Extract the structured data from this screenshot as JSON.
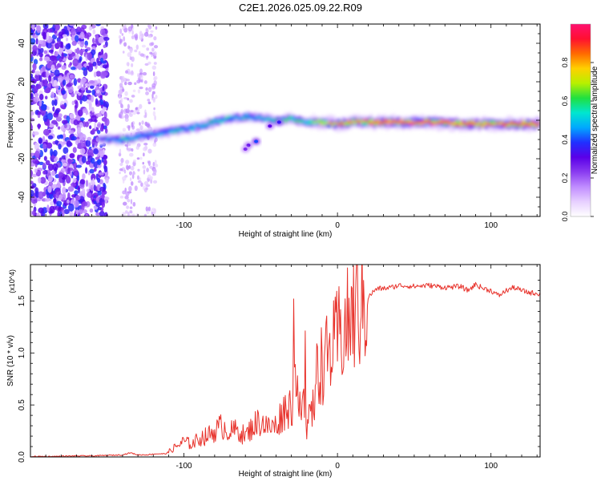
{
  "page_title": "C2E1.2026.025.09.22.R09",
  "chart_data": [
    {
      "type": "heatmap",
      "title": "C2E1.2026.025.09.22.R09",
      "xlabel": "Height of straight line (km)",
      "ylabel": "Frequency (Hz)",
      "xlim": [
        -200,
        132
      ],
      "ylim": [
        -50,
        50
      ],
      "x_ticks": [
        -100,
        0,
        100
      ],
      "x_tick_labels": [
        "-100",
        "0",
        "100"
      ],
      "y_ticks": [
        -40,
        -20,
        0,
        20,
        40
      ],
      "y_tick_labels": [
        "-40",
        "-20",
        "0",
        "20",
        "40"
      ],
      "colorbar": {
        "label": "Normalized spectral amplitude",
        "range": [
          0.0,
          1.0
        ],
        "ticks": [
          0.0,
          0.2,
          0.4,
          0.6,
          0.8
        ],
        "tick_labels": [
          "0.0",
          "0.2",
          "0.4",
          "0.6",
          "0.8"
        ],
        "colormap": [
          "#ffffff",
          "#e7d0ff",
          "#c08cff",
          "#8a3cf0",
          "#5a00e8",
          "#2030ff",
          "#00a8ff",
          "#00e6d0",
          "#20e040",
          "#b8f000",
          "#ffd000",
          "#ff6a00",
          "#ff1030",
          "#ff1070"
        ]
      },
      "ridge": {
        "x": [
          -155,
          -140,
          -125,
          -110,
          -95,
          -80,
          -70,
          -60,
          -50,
          -40,
          -30,
          -20,
          -10,
          0,
          10,
          20,
          40,
          60,
          80,
          100,
          132
        ],
        "y": [
          -10,
          -10,
          -8,
          -6,
          -4,
          -1,
          1,
          2,
          1,
          0,
          1,
          -1,
          -1,
          -2,
          -1,
          -1,
          -1,
          -1,
          -2,
          -2,
          -2
        ],
        "amplitude": [
          0.35,
          0.55,
          0.45,
          0.5,
          0.5,
          0.55,
          0.5,
          0.5,
          0.45,
          0.55,
          0.6,
          0.55,
          0.7,
          0.75,
          0.8,
          0.85,
          0.9,
          0.95,
          0.9,
          0.85,
          0.95
        ]
      },
      "side_blobs": {
        "x": [
          -58,
          -53,
          -60,
          -44,
          -38
        ],
        "y": [
          -13,
          -11,
          -15,
          -3,
          -1
        ],
        "amplitude": [
          0.3,
          0.4,
          0.25,
          0.3,
          0.35
        ]
      }
    },
    {
      "type": "line",
      "xlabel": "Height of straight line (km)",
      "ylabel": "SNR (10 * v/v)",
      "y_scale_label": "(x10^4)",
      "xlim": [
        -200,
        132
      ],
      "ylim": [
        0,
        1.85
      ],
      "x_ticks": [
        -100,
        0,
        100
      ],
      "x_tick_labels": [
        "-100",
        "0",
        "100"
      ],
      "y_ticks": [
        0.0,
        0.5,
        1.0,
        1.5
      ],
      "y_tick_labels": [
        "0.0",
        "0.5",
        "1.0",
        "1.5"
      ],
      "series": [
        {
          "name": "SNR",
          "color": "#e8332c",
          "x": [
            -200,
            -185,
            -170,
            -160,
            -150,
            -140,
            -135,
            -130,
            -125,
            -118,
            -112,
            -105,
            -100,
            -95,
            -90,
            -85,
            -80,
            -75,
            -70,
            -65,
            -60,
            -55,
            -50,
            -45,
            -40,
            -35,
            -30,
            -28,
            -25,
            -22,
            -20,
            -17,
            -15,
            -13,
            -10,
            -7,
            -5,
            -2,
            0,
            3,
            6,
            9,
            12,
            15,
            18,
            21,
            24,
            27,
            30,
            35,
            40,
            50,
            60,
            70,
            80,
            85,
            90,
            95,
            100,
            105,
            110,
            115,
            120,
            125,
            132
          ],
          "y": [
            0.005,
            0.005,
            0.01,
            0.01,
            0.015,
            0.02,
            0.04,
            0.02,
            0.02,
            0.03,
            0.03,
            0.1,
            0.15,
            0.12,
            0.18,
            0.2,
            0.25,
            0.3,
            0.24,
            0.26,
            0.2,
            0.3,
            0.35,
            0.28,
            0.3,
            0.45,
            0.5,
            0.6,
            0.7,
            0.55,
            0.3,
            0.4,
            0.55,
            0.85,
            0.9,
            0.95,
            1.0,
            1.05,
            1.15,
            1.2,
            1.25,
            1.32,
            1.4,
            1.45,
            1.5,
            1.55,
            1.6,
            1.62,
            1.62,
            1.63,
            1.65,
            1.64,
            1.65,
            1.63,
            1.64,
            1.6,
            1.66,
            1.62,
            1.6,
            1.55,
            1.6,
            1.63,
            1.6,
            1.58,
            1.57
          ]
        }
      ]
    }
  ]
}
